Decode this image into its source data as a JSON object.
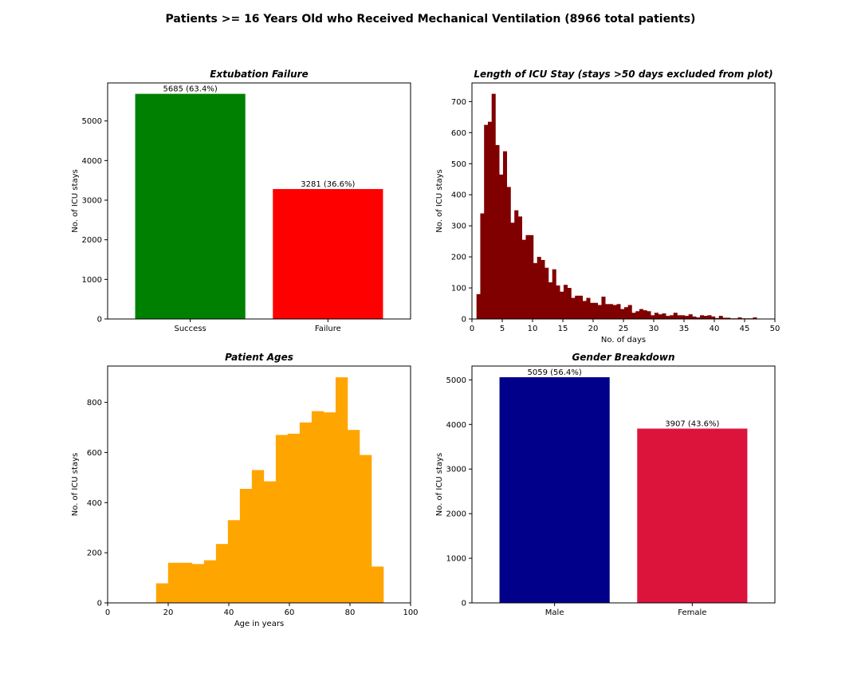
{
  "figure": {
    "title": "Patients >= 16 Years Old who Received Mechanical Ventilation (8966 total patients)"
  },
  "chart_data": [
    {
      "type": "bar",
      "title": "Extubation Failure",
      "xlabel": "",
      "ylabel": "No. of ICU stays",
      "categories": [
        "Success",
        "Failure"
      ],
      "values": [
        5685,
        3281
      ],
      "data_labels": [
        "5685 (63.4%)",
        "3281 (36.6%)"
      ],
      "colors": [
        "#008000",
        "#ff0000"
      ],
      "ylim": [
        0,
        5960
      ],
      "yticks": [
        0,
        1000,
        2000,
        3000,
        4000,
        5000
      ]
    },
    {
      "type": "bar",
      "title": "Length of ICU Stay (stays >50 days excluded from plot)",
      "xlabel": "No. of days",
      "ylabel": "No. of ICU stays",
      "histogram": true,
      "color": "#800000",
      "bin_start": 0.75,
      "bin_width": 0.625,
      "values": [
        80,
        340,
        625,
        635,
        725,
        560,
        465,
        540,
        425,
        310,
        350,
        330,
        255,
        270,
        270,
        180,
        200,
        190,
        165,
        118,
        160,
        108,
        88,
        110,
        100,
        68,
        75,
        75,
        58,
        68,
        52,
        52,
        45,
        72,
        48,
        48,
        45,
        48,
        32,
        38,
        45,
        20,
        25,
        32,
        28,
        25,
        12,
        20,
        15,
        18,
        10,
        12,
        20,
        12,
        12,
        10,
        15,
        8,
        5,
        12,
        10,
        12,
        8,
        3,
        10,
        4,
        4,
        2,
        2,
        5,
        2,
        2,
        2,
        5
      ],
      "xlim": [
        0,
        50
      ],
      "ylim": [
        0,
        760
      ],
      "xticks": [
        0,
        5,
        10,
        15,
        20,
        25,
        30,
        35,
        40,
        45,
        50
      ],
      "yticks": [
        0,
        100,
        200,
        300,
        400,
        500,
        600,
        700
      ]
    },
    {
      "type": "bar",
      "title": "Patient Ages",
      "xlabel": "Age in years",
      "ylabel": "No. of ICU stays",
      "histogram": true,
      "color": "#ffa500",
      "bin_start": 16,
      "bin_width": 3.95,
      "values": [
        78,
        160,
        160,
        155,
        170,
        235,
        330,
        455,
        530,
        485,
        670,
        675,
        720,
        765,
        760,
        900,
        690,
        590,
        145
      ],
      "xlim": [
        0,
        100
      ],
      "ylim": [
        0,
        945
      ],
      "xticks": [
        0,
        20,
        40,
        60,
        80,
        100
      ],
      "yticks": [
        0,
        200,
        400,
        600,
        800
      ]
    },
    {
      "type": "bar",
      "title": "Gender Breakdown",
      "xlabel": "",
      "ylabel": "No. of ICU stays",
      "categories": [
        "Male",
        "Female"
      ],
      "values": [
        5059,
        3907
      ],
      "data_labels": [
        "5059 (56.4%)",
        "3907 (43.6%)"
      ],
      "colors": [
        "#00008b",
        "#dc143c"
      ],
      "ylim": [
        0,
        5310
      ],
      "yticks": [
        0,
        1000,
        2000,
        3000,
        4000,
        5000
      ]
    }
  ]
}
